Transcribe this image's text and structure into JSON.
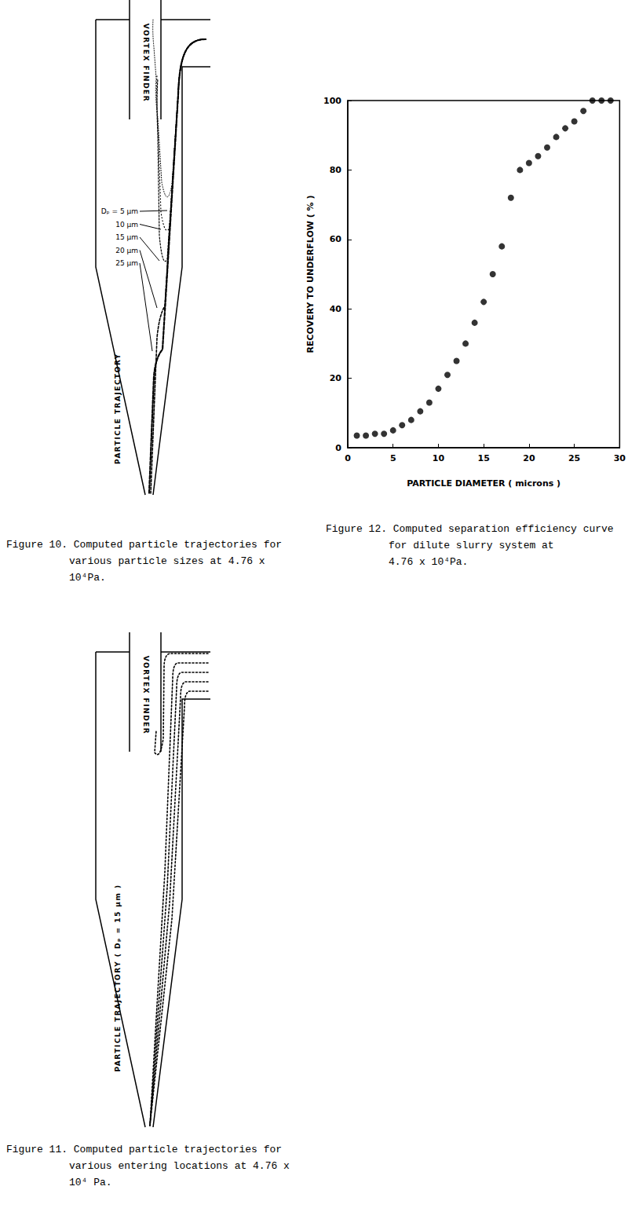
{
  "chart_data": {
    "type": "scatter",
    "x_label": "PARTICLE DIAMETER ( microns )",
    "y_label": "RECOVERY TO UNDERFLOW ( % )",
    "x": [
      1,
      2,
      3,
      4,
      5,
      6,
      7,
      8,
      9,
      10,
      11,
      12,
      13,
      14,
      15,
      16,
      17,
      18,
      19,
      20,
      21,
      22,
      23,
      24,
      25,
      26,
      27,
      28,
      29
    ],
    "values": [
      3.5,
      3.5,
      4,
      4,
      5,
      6.5,
      8,
      10.5,
      13,
      17,
      21,
      25,
      30,
      36,
      42,
      50,
      58,
      72,
      80,
      82,
      84,
      86.5,
      89.5,
      92,
      94,
      97,
      100,
      100,
      100
    ],
    "color": "#000000",
    "marker": "circle",
    "xlim": [
      0,
      30
    ],
    "xticks": [
      0,
      5,
      10,
      15,
      20,
      25,
      30
    ],
    "ylim": [
      0,
      100
    ],
    "yticks": [
      0,
      20,
      40,
      60,
      80,
      100
    ],
    "grid": false
  },
  "chart_caption": [
    "Figure 12. Computed separation efficiency curve",
    "for dilute slurry system at",
    "4.76 x 10⁴Pa."
  ],
  "diagrams": [
    {
      "vortex_label": "VORTEX FINDER",
      "trajectory_label": "PARTICLE TRAJECTORY",
      "size_labels": [
        "Dₚ = 5 μm",
        "10 μm",
        "15 μm",
        "20 μm",
        "25 μm"
      ],
      "caption": [
        "Figure 10. Computed particle trajectories for",
        "various particle sizes at 4.76 x",
        "10⁴Pa."
      ]
    },
    {
      "vortex_label": "VORTEX FINDER",
      "trajectory_label": "PARTICLE TRAJECTORY ( Dₚ = 15 μm )",
      "caption": [
        "Figure 11. Computed particle trajectories for",
        "various entering locations at 4.76 x",
        "10⁴ Pa."
      ]
    }
  ]
}
